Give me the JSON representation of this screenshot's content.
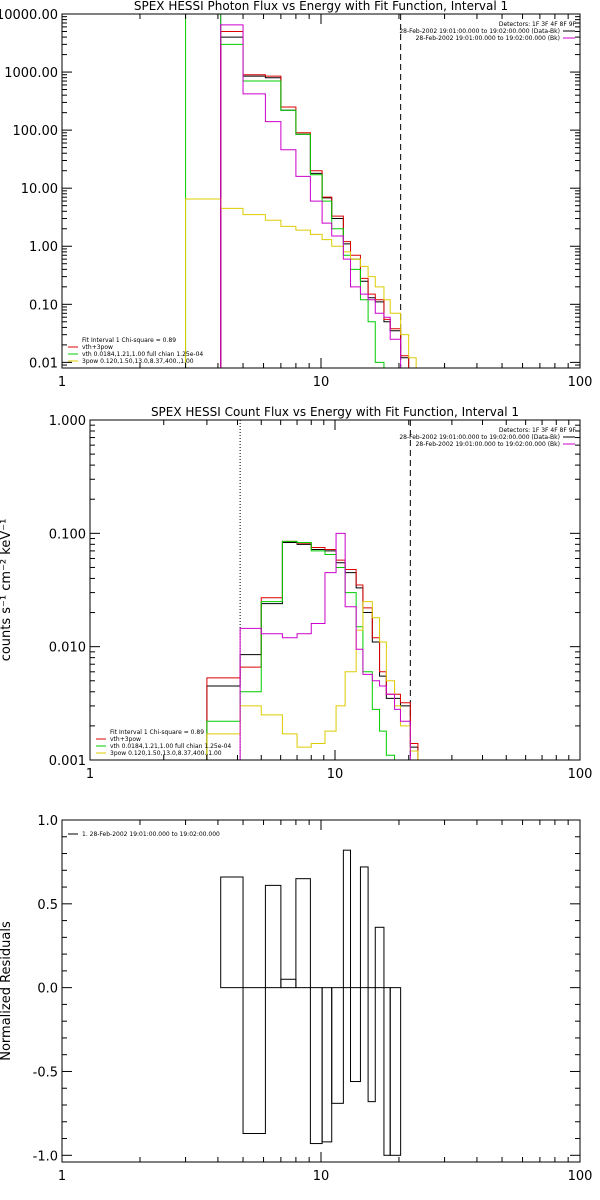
{
  "chart_data": [
    {
      "type": "line",
      "title": "SPEX HESSI Photon Flux vs Energy with Fit Function, Interval 1",
      "xlabel": "",
      "ylabel": "",
      "xscale": "log",
      "yscale": "log",
      "xlim": [
        1,
        100
      ],
      "ylim": [
        0.008,
        10000
      ],
      "xticks": [
        1,
        10,
        100
      ],
      "xtick_labels": [
        "1",
        "10",
        "100"
      ],
      "yticks": [
        0.01,
        0.1,
        1,
        10,
        100,
        1000,
        10000
      ],
      "ytick_labels": [
        "0.01",
        "0.10",
        "1.00",
        "10.00",
        "100.00",
        "1000.00",
        "10000.00"
      ],
      "header": [
        {
          "text": "Detectors: 1F 3F 4F 8F 9F",
          "color": ""
        },
        {
          "text": "28-Feb-2002 19:01:00.000 to 19:02:00.000 (Data-Bk)",
          "color": "#000000"
        },
        {
          "text": "28-Feb-2002 19:01:00.000 to 19:02:00.000 (Bk)",
          "color": "#cc00cc"
        }
      ],
      "legend": {
        "position": "bottom-left",
        "entries": [
          {
            "text": "Fit Interval 1    Chi-square = 0.89",
            "color": "#000000"
          },
          {
            "text": "vth+3pow",
            "color": "#dd0000"
          },
          {
            "text": "vth 0.0184,1.21,1.00  full chian 1.25e-04",
            "color": "#00cc00"
          },
          {
            "text": "3pow 0.120,1.50,13.0,8.37,400.,1.00",
            "color": "#ddcc00"
          }
        ]
      },
      "vlines": [
        {
          "x": 4.1,
          "color": "#cc00cc",
          "style": "solid"
        },
        {
          "x": 20.3,
          "color": "#000000",
          "style": "dashed"
        }
      ],
      "edges": [
        3.0,
        4.1,
        5.0,
        6.1,
        7.0,
        8.0,
        9.1,
        10.1,
        11.0,
        12.2,
        13.0,
        14.2,
        15.2,
        16.2,
        17.5,
        18.5,
        20.3,
        21.8,
        23.3
      ],
      "series": [
        {
          "name": "",
          "color": "#000000",
          "values": [
            null,
            4000,
            850,
            800,
            220,
            85,
            18,
            6.8,
            3.0,
            1.1,
            0.6,
            0.25,
            0.13,
            0.11,
            0.05,
            0.035,
            0.012,
            null
          ]
        },
        {
          "name": "",
          "color": "#dd0000",
          "values": [
            null,
            5000,
            900,
            850,
            250,
            90,
            20,
            7.0,
            3.3,
            1.2,
            0.7,
            0.28,
            0.15,
            0.12,
            0.055,
            0.038,
            0.013,
            null
          ]
        },
        {
          "name": "",
          "color": "#00cc00",
          "values": [
            10000,
            3000,
            700,
            700,
            220,
            85,
            17,
            6.0,
            2.0,
            0.7,
            0.4,
            0.12,
            0.05,
            0.01,
            null,
            null,
            null,
            null
          ]
        },
        {
          "name": "",
          "color": "#ddcc00",
          "values": [
            6.5,
            4.5,
            3.5,
            2.8,
            2.2,
            1.9,
            1.6,
            1.3,
            1.0,
            0.8,
            0.6,
            0.45,
            0.3,
            0.2,
            0.12,
            0.07,
            0.03,
            0.012
          ]
        },
        {
          "name": "",
          "color": "#cc00cc",
          "values": [
            null,
            6500,
            420,
            140,
            46,
            16,
            6.0,
            2.5,
            1.5,
            0.6,
            0.2,
            0.15,
            0.12,
            0.07,
            0.06,
            0.025,
            null,
            null
          ]
        }
      ]
    },
    {
      "type": "line",
      "title": "SPEX HESSI Count Flux vs Energy with Fit Function, Interval 1",
      "xlabel": "",
      "ylabel": "counts s⁻¹ cm⁻² keV⁻¹",
      "xscale": "log",
      "yscale": "log",
      "xlim": [
        1,
        100
      ],
      "ylim": [
        0.001,
        1
      ],
      "xticks": [
        1,
        10,
        100
      ],
      "xtick_labels": [
        "1",
        "10",
        "100"
      ],
      "yticks": [
        0.001,
        0.01,
        0.1,
        1
      ],
      "ytick_labels": [
        "0.001",
        "0.010",
        "0.100",
        "1.000"
      ],
      "header": [
        {
          "text": "Detectors: 1F 3F 4F 8F 9F",
          "color": ""
        },
        {
          "text": "28-Feb-2002 19:01:00.000 to 19:02:00.000 (Data-Bk)",
          "color": "#000000"
        },
        {
          "text": "28-Feb-2002 19:01:00.000 to 19:02:00.000 (Bk)",
          "color": "#cc00cc"
        }
      ],
      "legend": {
        "position": "bottom-left",
        "entries": [
          {
            "text": "Fit Interval 1    Chi-square = 0.89",
            "color": "#000000"
          },
          {
            "text": "vth+3pow",
            "color": "#dd0000"
          },
          {
            "text": "vth 0.0184,1.21,1.00  full chian 1.25e-04",
            "color": "#00cc00"
          },
          {
            "text": "3pow 0.120,1.50,13.0,8.37,400.,1.00",
            "color": "#ddcc00"
          }
        ]
      },
      "vlines": [
        {
          "x": 4.1,
          "color": "#000000",
          "style": "dotted"
        },
        {
          "x": 20.3,
          "color": "#000000",
          "style": "dashed"
        }
      ],
      "edges": [
        3.0,
        4.1,
        5.0,
        6.1,
        7.0,
        8.0,
        9.1,
        10.1,
        11.0,
        12.2,
        13.0,
        14.2,
        15.2,
        16.2,
        17.5,
        18.5,
        20.3,
        21.8
      ],
      "series": [
        {
          "name": "",
          "color": "#000000",
          "values": [
            0.0045,
            0.0085,
            0.024,
            0.083,
            0.08,
            0.072,
            0.07,
            0.055,
            0.045,
            0.033,
            0.02,
            0.011,
            0.0055,
            0.0035,
            0.0035,
            0.003,
            0.0013
          ]
        },
        {
          "name": "",
          "color": "#dd0000",
          "values": [
            0.0053,
            0.0066,
            0.027,
            0.085,
            0.082,
            0.075,
            0.072,
            0.058,
            0.048,
            0.035,
            0.022,
            0.012,
            0.006,
            0.0038,
            0.0038,
            0.0032,
            0.0014
          ]
        },
        {
          "name": "",
          "color": "#00cc00",
          "values": [
            0.0022,
            0.004,
            0.025,
            0.085,
            0.083,
            0.07,
            0.065,
            0.05,
            0.03,
            0.015,
            0.006,
            0.0028,
            0.0018,
            0.0011,
            0.001,
            0.001,
            null
          ]
        },
        {
          "name": "",
          "color": "#ddcc00",
          "values": [
            0.0017,
            0.003,
            0.0025,
            0.0017,
            0.0013,
            0.0014,
            0.0018,
            0.003,
            0.006,
            0.014,
            0.025,
            0.018,
            0.011,
            0.005,
            0.003,
            0.002,
            0.0012
          ]
        },
        {
          "name": "",
          "color": "#cc00cc",
          "values": [
            null,
            0.0145,
            0.013,
            0.012,
            0.013,
            0.016,
            0.045,
            0.1,
            0.0225,
            0.0095,
            0.0057,
            0.005,
            0.0045,
            0.0038,
            0.0028,
            0.0022,
            null
          ]
        }
      ]
    },
    {
      "type": "line",
      "title": "",
      "xlabel": "",
      "ylabel": "Normalized Residuals",
      "xscale": "log",
      "yscale": "linear",
      "xlim": [
        1,
        100
      ],
      "ylim": [
        -1.04,
        1.0
      ],
      "xticks": [
        1,
        10,
        100
      ],
      "xtick_labels": [
        "1",
        "10",
        "100"
      ],
      "yticks": [
        1.0,
        0.5,
        0.0,
        -0.5,
        -1.0
      ],
      "ytick_labels": [
        "1.0",
        "0.5",
        "0.0",
        "-0.5",
        "-1.0"
      ],
      "header": [],
      "legend": {
        "position": "top-left",
        "entries": [
          {
            "text": "1. 28-Feb-2002 19:01:00.000 to 19:02:00.000",
            "color": "#000000"
          }
        ]
      },
      "vlines": [],
      "edges": [
        4.1,
        5.0,
        6.1,
        7.0,
        8.0,
        9.1,
        10.1,
        11.0,
        12.2,
        13.0,
        14.2,
        15.2,
        16.2,
        17.5,
        18.5,
        20.3
      ],
      "series": [
        {
          "name": "",
          "color": "#000000",
          "values": [
            0.66,
            -0.87,
            0.61,
            0.05,
            0.65,
            -0.93,
            -0.92,
            -0.69,
            0.82,
            -0.56,
            0.72,
            -0.68,
            0.36,
            -1.0,
            -1.0
          ]
        }
      ]
    }
  ]
}
